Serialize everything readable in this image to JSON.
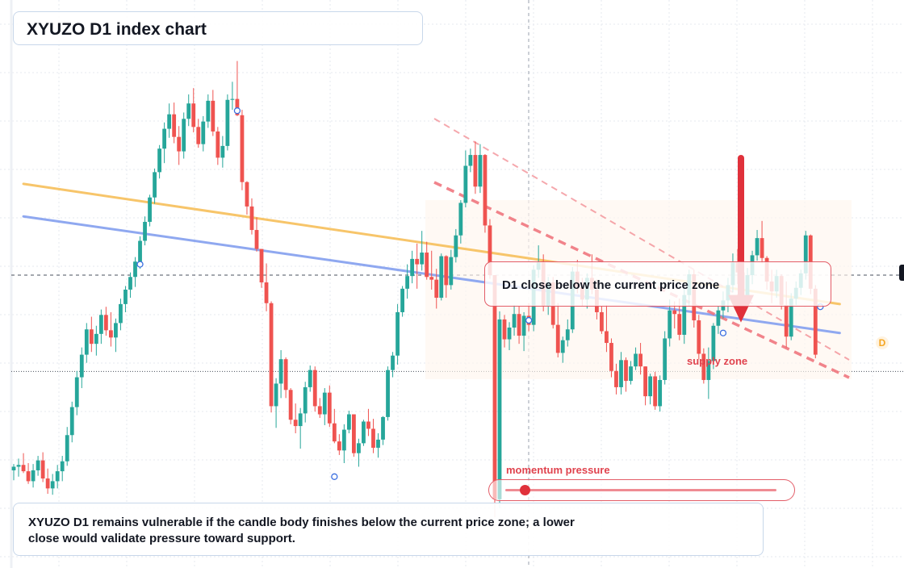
{
  "title": "XYUZO D1 index chart",
  "zone_label": "D1 close below the current price zone",
  "supply_label": "supply zone",
  "momentum_label": "momentum pressure",
  "note": "XYUZO D1 remains vulnerable if the candle body finishes below the current price zone; a lower close would validate pressure toward support.",
  "badge": "D",
  "colors": {
    "bull": "#26a69a",
    "bear": "#ef5350",
    "yellow_line": "#f7c56a",
    "blue_line": "#8fa8f0",
    "arrow": "#e0313b",
    "dashed": "#ef6f78"
  },
  "chart_data": {
    "type": "candlestick",
    "title": "XYUZO D1 index chart",
    "ylim": [
      0,
      100
    ],
    "current_price_zone": 51.6,
    "support": 30.3,
    "candles": [
      [
        8.4,
        9.8,
        6.2,
        9.2
      ],
      [
        9.2,
        11,
        7,
        9.6
      ],
      [
        9.6,
        12.2,
        7.8,
        8.2
      ],
      [
        8.2,
        10,
        5.4,
        6
      ],
      [
        6,
        9.8,
        4.6,
        8.4
      ],
      [
        8.4,
        11.6,
        7.2,
        10.6
      ],
      [
        10.6,
        12.4,
        5.8,
        6.6
      ],
      [
        6.6,
        8.8,
        3.2,
        4.4
      ],
      [
        4.4,
        7.6,
        3,
        6
      ],
      [
        6,
        9.6,
        4.4,
        8.2
      ],
      [
        8.2,
        11.6,
        6,
        10.4
      ],
      [
        10.4,
        18,
        9.4,
        16.2
      ],
      [
        16.2,
        23.6,
        14.6,
        22.4
      ],
      [
        22.4,
        30.4,
        20.6,
        29
      ],
      [
        29,
        35.6,
        26.6,
        34
      ],
      [
        34,
        41,
        32.2,
        39.6
      ],
      [
        39.6,
        42.4,
        34.6,
        36.4
      ],
      [
        36.4,
        40.4,
        33.8,
        38.6
      ],
      [
        38.6,
        44,
        36.4,
        42.8
      ],
      [
        42.8,
        44.6,
        38.2,
        39.4
      ],
      [
        39.4,
        43.4,
        35.8,
        37.8
      ],
      [
        37.8,
        42,
        34.6,
        41
      ],
      [
        41,
        46.4,
        39.4,
        45.2
      ],
      [
        45.2,
        49.2,
        43.4,
        48.4
      ],
      [
        48.4,
        52.2,
        46.6,
        51.2
      ],
      [
        51.2,
        55.6,
        49,
        54.6
      ],
      [
        54.6,
        60.2,
        53,
        59.2
      ],
      [
        59.2,
        64.6,
        58.2,
        63.4
      ],
      [
        63.4,
        69.4,
        62.4,
        68.8
      ],
      [
        68.8,
        75.2,
        67.4,
        74.4
      ],
      [
        74.4,
        80.4,
        73,
        79.6
      ],
      [
        79.6,
        85.4,
        76.4,
        84
      ],
      [
        84,
        89.6,
        82,
        87.2
      ],
      [
        87.2,
        89.8,
        80.8,
        82.2
      ],
      [
        82.2,
        84.6,
        76,
        79
      ],
      [
        79,
        87.6,
        77.4,
        86.2
      ],
      [
        86.2,
        91.6,
        84.6,
        89.6
      ],
      [
        89.6,
        93,
        83.2,
        84.4
      ],
      [
        84.4,
        86.2,
        79.8,
        80.6
      ],
      [
        80.6,
        86.8,
        79,
        85.6
      ],
      [
        85.6,
        91.6,
        84.2,
        90.2
      ],
      [
        90.2,
        92.6,
        82.4,
        83.4
      ],
      [
        83.4,
        84.4,
        76,
        77.6
      ],
      [
        77.6,
        82.4,
        75.4,
        80.2
      ],
      [
        80.2,
        91.6,
        79.2,
        90.4
      ],
      [
        90.4,
        94.4,
        88.2,
        90.6
      ],
      [
        90.6,
        99,
        86.8,
        87
      ],
      [
        87,
        88.2,
        70.4,
        72.2
      ],
      [
        72.2,
        72.4,
        65,
        66.8
      ],
      [
        66.8,
        68.6,
        60.6,
        61.6
      ],
      [
        61.6,
        64.4,
        56.8,
        57.4
      ],
      [
        57.4,
        57.4,
        48.8,
        50
      ],
      [
        50,
        54.2,
        43.6,
        45.4
      ],
      [
        45.4,
        45.8,
        21.2,
        22.6
      ],
      [
        22.6,
        28.8,
        17.8,
        27.6
      ],
      [
        27.6,
        35,
        24.4,
        33
      ],
      [
        33,
        33.4,
        24.4,
        26.2
      ],
      [
        26.2,
        26.6,
        18.6,
        19.6
      ],
      [
        19.6,
        23.2,
        16.6,
        18.2
      ],
      [
        18.2,
        22.2,
        13.2,
        21
      ],
      [
        21,
        28,
        19,
        26.8
      ],
      [
        26.8,
        31.6,
        25.8,
        30.6
      ],
      [
        30.6,
        31.4,
        21.4,
        22.6
      ],
      [
        22.6,
        24.4,
        20,
        20.8
      ],
      [
        20.8,
        26.6,
        18.4,
        25.6
      ],
      [
        25.6,
        27.2,
        18,
        18.8
      ],
      [
        18.8,
        22,
        14.4,
        14.8
      ],
      [
        14.8,
        16.4,
        11.8,
        12.8
      ],
      [
        12.8,
        18.6,
        10,
        17.4
      ],
      [
        17.4,
        21.6,
        16.6,
        20.8
      ],
      [
        20.8,
        20.4,
        11.4,
        12.2
      ],
      [
        12.2,
        15.4,
        9.2,
        14.4
      ],
      [
        14.4,
        19.6,
        13.8,
        19.2
      ],
      [
        19.2,
        22,
        16,
        17.6
      ],
      [
        17.6,
        19.8,
        12.2,
        13.4
      ],
      [
        13.4,
        16.6,
        11.2,
        15.2
      ],
      [
        15.2,
        20.4,
        14,
        20.2
      ],
      [
        20.2,
        31.4,
        19.4,
        30.6
      ],
      [
        30.6,
        34.6,
        29,
        33.8
      ],
      [
        33.8,
        45.2,
        31.8,
        43.4
      ],
      [
        43.4,
        49.2,
        42.4,
        48.6
      ],
      [
        48.6,
        54,
        46.4,
        51.4
      ],
      [
        51.4,
        57,
        49.8,
        55.2
      ],
      [
        55.2,
        58.6,
        48.6,
        54
      ],
      [
        54,
        61.4,
        52.6,
        56.6
      ],
      [
        56.6,
        59,
        50.6,
        51.2
      ],
      [
        51.2,
        57,
        48.4,
        50.6
      ],
      [
        50.6,
        53,
        44.2,
        46.6
      ],
      [
        46.6,
        56.4,
        46,
        55.8
      ],
      [
        55.8,
        56,
        46.6,
        49.4
      ],
      [
        49.4,
        57.2,
        48.4,
        55.6
      ],
      [
        55.6,
        61.8,
        54.4,
        60.4
      ],
      [
        60.4,
        68.2,
        58.6,
        67.6
      ],
      [
        67.6,
        79.2,
        66.6,
        75.8
      ],
      [
        75.8,
        79.6,
        74.4,
        78.2
      ],
      [
        78.2,
        81.2,
        69.6,
        71.2
      ],
      [
        71.2,
        80.6,
        69.8,
        78.2
      ],
      [
        78.2,
        78.4,
        61,
        62.6
      ],
      [
        62.6,
        64,
        50.8,
        51.6
      ],
      [
        51.6,
        51.6,
        -2,
        2
      ],
      [
        2,
        43.6,
        0,
        41.8
      ],
      [
        41.8,
        42.8,
        35.6,
        37.4
      ],
      [
        37.4,
        41.2,
        35,
        40
      ],
      [
        40,
        45,
        38.2,
        43
      ],
      [
        43,
        44.8,
        36.4,
        38.2
      ],
      [
        38.2,
        43.4,
        34.8,
        42.6
      ],
      [
        42.6,
        45.4,
        39.2,
        40.6
      ],
      [
        40.6,
        53.8,
        39.2,
        52.8
      ],
      [
        52.8,
        58.2,
        51,
        54.4
      ],
      [
        54.4,
        56.2,
        43.6,
        44.8
      ],
      [
        44.8,
        51.2,
        42.8,
        50
      ],
      [
        50,
        51.2,
        39.8,
        40.6
      ],
      [
        40.6,
        45.4,
        33.4,
        34.4
      ],
      [
        34.4,
        38,
        32.2,
        37.2
      ],
      [
        37.2,
        41.8,
        35.8,
        39.6
      ],
      [
        39.6,
        53.4,
        38.8,
        52.4
      ],
      [
        52.4,
        55,
        47.6,
        49
      ],
      [
        49,
        51,
        44.8,
        46.2
      ],
      [
        46.2,
        52,
        44.2,
        51
      ],
      [
        51,
        56.2,
        47.4,
        48.4
      ],
      [
        48.4,
        50.6,
        41.8,
        43.4
      ],
      [
        43.4,
        44.8,
        38.6,
        39.2
      ],
      [
        39.2,
        45,
        34.6,
        36.6
      ],
      [
        36.6,
        37.6,
        29,
        30.4
      ],
      [
        30.4,
        32,
        25.2,
        26.8
      ],
      [
        26.8,
        34.6,
        25.2,
        32.8
      ],
      [
        32.8,
        33.4,
        25.8,
        28.2
      ],
      [
        28.2,
        32.6,
        27.4,
        31.4
      ],
      [
        31.4,
        35.6,
        30.6,
        34.2
      ],
      [
        34.2,
        36.6,
        29.6,
        31.4
      ],
      [
        31.4,
        31.4,
        22.8,
        24.8
      ],
      [
        24.8,
        29.8,
        23,
        29.2
      ],
      [
        29.2,
        30.2,
        21.8,
        22.6
      ],
      [
        22.6,
        29.4,
        21.4,
        28.4
      ],
      [
        28.4,
        39.2,
        27.4,
        37.6
      ],
      [
        37.6,
        46.2,
        35.8,
        43.8
      ],
      [
        43.8,
        45.8,
        39.8,
        43
      ],
      [
        43,
        46.4,
        37.2,
        38.4
      ],
      [
        38.4,
        48.6,
        36.4,
        47.2
      ],
      [
        47.2,
        52.8,
        44.8,
        51.8
      ],
      [
        51.8,
        52.8,
        40,
        41.6
      ],
      [
        41.6,
        42.8,
        33,
        34.2
      ],
      [
        34.2,
        35.4,
        27.6,
        28.4
      ],
      [
        28.4,
        35.6,
        24.2,
        32.6
      ],
      [
        32.6,
        41,
        30.8,
        40.4
      ],
      [
        40.4,
        44.8,
        38.6,
        43.8
      ],
      [
        43.8,
        48,
        42,
        46
      ],
      [
        46,
        51,
        43.4,
        49.4
      ],
      [
        49.4,
        56.4,
        47.8,
        54.4
      ],
      [
        54.4,
        57.4,
        49.6,
        52.2
      ],
      [
        52.2,
        53,
        45.4,
        47
      ],
      [
        47,
        53.2,
        45.6,
        51.6
      ],
      [
        51.6,
        57,
        49.6,
        56
      ],
      [
        56,
        61.6,
        54.8,
        59.8
      ],
      [
        59.8,
        63.6,
        54.2,
        55.4
      ],
      [
        55.4,
        55.8,
        48.4,
        50.2
      ],
      [
        50.2,
        52.8,
        45.4,
        48
      ],
      [
        48,
        52.8,
        46.6,
        51.4
      ],
      [
        51.4,
        51.8,
        44,
        45
      ],
      [
        45,
        50.2,
        35.6,
        38
      ],
      [
        38,
        47.6,
        37.2,
        46.4
      ],
      [
        46.4,
        50.2,
        45,
        48.8
      ],
      [
        48.8,
        52.8,
        47.2,
        52
      ],
      [
        52,
        61.4,
        50.6,
        60.4
      ],
      [
        60.4,
        60.6,
        47.4,
        48.6
      ],
      [
        48.6,
        49.4,
        33.2,
        34
      ]
    ],
    "lines": [
      {
        "name": "",
        "points": [
          [
            2,
            71.8
          ],
          [
            170,
            45.2
          ]
        ]
      },
      {
        "name": "",
        "points": [
          [
            2,
            64.6
          ],
          [
            170,
            38.8
          ]
        ]
      }
    ],
    "projection": {
      "from": 46.7,
      "to": 41.5
    }
  }
}
